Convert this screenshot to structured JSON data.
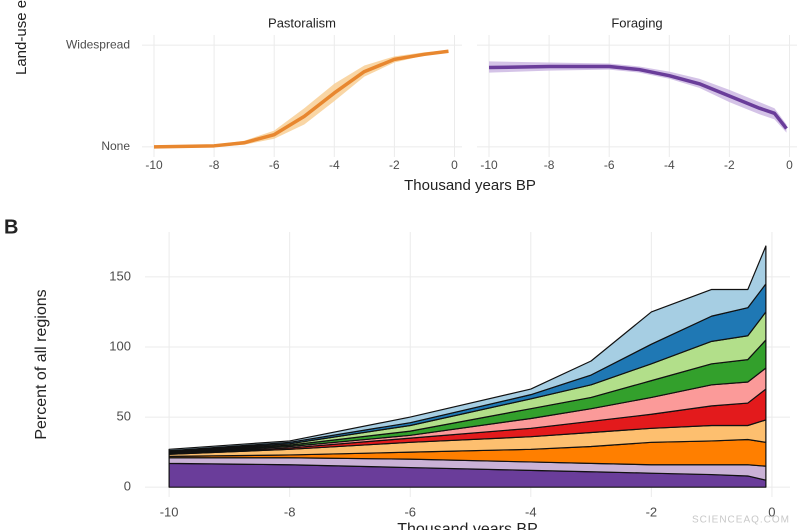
{
  "chart_data": [
    {
      "type": "line",
      "ylabel": "Land-use e",
      "xlabel": "Thousand years BP",
      "xlim": [
        -10.4,
        0.25
      ],
      "xticks": [
        -10,
        -8,
        -6,
        -4,
        -2,
        0
      ],
      "ylim": [
        -0.1,
        1.1
      ],
      "yticks": [
        {
          "value": 0,
          "label": "None"
        },
        {
          "value": 1,
          "label": "Widespread"
        }
      ],
      "grid": true,
      "panels": [
        {
          "title": "Pastoralism",
          "color": "#e8872f",
          "band_color": "#f8cf95",
          "x": [
            -10,
            -8,
            -7,
            -6,
            -5,
            -4,
            -3,
            -2,
            -1,
            -0.2
          ],
          "values": [
            0,
            0.01,
            0.04,
            0.12,
            0.3,
            0.53,
            0.74,
            0.86,
            0.91,
            0.94
          ],
          "lower": [
            0,
            0,
            0.02,
            0.08,
            0.22,
            0.45,
            0.69,
            0.83,
            0.9,
            0.93
          ],
          "upper": [
            0.01,
            0.02,
            0.06,
            0.16,
            0.38,
            0.62,
            0.8,
            0.89,
            0.93,
            0.95
          ]
        },
        {
          "title": "Foraging",
          "color": "#6a3d9a",
          "band_color": "#cdb8e3",
          "x": [
            -10,
            -8,
            -6,
            -5,
            -4,
            -3,
            -2,
            -1,
            -0.5,
            -0.1
          ],
          "values": [
            0.78,
            0.79,
            0.79,
            0.76,
            0.7,
            0.62,
            0.5,
            0.38,
            0.33,
            0.18
          ],
          "lower": [
            0.73,
            0.75,
            0.76,
            0.73,
            0.67,
            0.58,
            0.44,
            0.32,
            0.27,
            0.14
          ],
          "upper": [
            0.84,
            0.83,
            0.82,
            0.79,
            0.74,
            0.67,
            0.56,
            0.44,
            0.38,
            0.22
          ]
        }
      ]
    },
    {
      "type": "stacked_area",
      "label": "B",
      "ylabel": "Percent of all regions",
      "xlabel": "Thousand years BP",
      "xlim": [
        -10.4,
        0.3
      ],
      "xticks": [
        -10,
        -8,
        -6,
        -4,
        -2,
        0
      ],
      "ylim": [
        -7,
        182
      ],
      "yticks": [
        0,
        50,
        100,
        150
      ],
      "grid": true,
      "x": [
        -10,
        -8,
        -6,
        -4,
        -3,
        -2,
        -1,
        -0.4,
        -0.1
      ],
      "series": [
        {
          "color": "#6a3d9a",
          "values": [
            17,
            16,
            14,
            12,
            11,
            10,
            9,
            8,
            5
          ]
        },
        {
          "color": "#cab2d6",
          "values": [
            4,
            5,
            6,
            6,
            6,
            6,
            7,
            8,
            10
          ]
        },
        {
          "color": "#ff7f00",
          "values": [
            1,
            2,
            5,
            9,
            12,
            16,
            17,
            18,
            17
          ]
        },
        {
          "color": "#fdbf6f",
          "values": [
            1.5,
            4,
            7,
            9,
            10,
            10,
            11,
            10,
            16
          ]
        },
        {
          "color": "#e31a1c",
          "values": [
            0.5,
            1,
            3,
            6,
            8,
            10,
            14,
            16,
            22
          ]
        },
        {
          "color": "#fb9a99",
          "values": [
            0.5,
            1,
            2,
            7,
            9,
            12,
            15,
            15,
            15
          ]
        },
        {
          "color": "#33a02c",
          "values": [
            0.5,
            1,
            3,
            7,
            8,
            12,
            15,
            16,
            20
          ]
        },
        {
          "color": "#b2df8a",
          "values": [
            0.5,
            1,
            4,
            7,
            9,
            12,
            16,
            17,
            20
          ]
        },
        {
          "color": "#1f78b4",
          "values": [
            0.5,
            1,
            2,
            3,
            7,
            14,
            18,
            20,
            20
          ]
        },
        {
          "color": "#a6cee3",
          "values": [
            1,
            1,
            4,
            4,
            10,
            23,
            19,
            13,
            27
          ]
        }
      ]
    }
  ],
  "watermark": "SCIENCEAQ.COM"
}
